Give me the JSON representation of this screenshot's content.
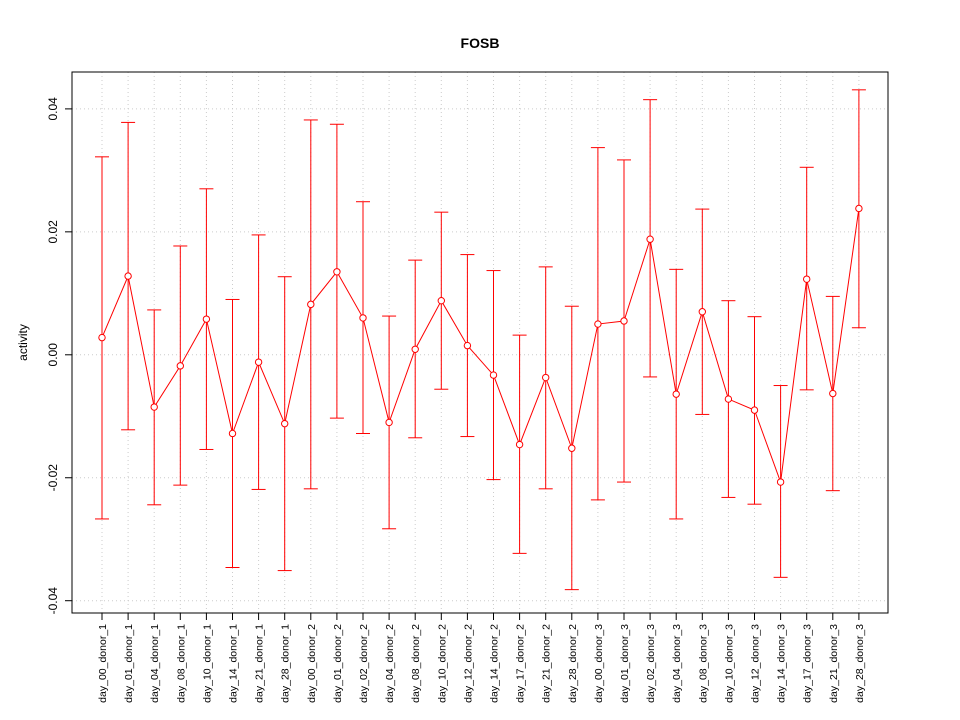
{
  "chart_data": {
    "type": "line",
    "title": "FOSB",
    "xlabel": "",
    "ylabel": "activity",
    "ylim": [
      -0.042,
      0.046
    ],
    "y_ticks": [
      -0.04,
      -0.02,
      0.0,
      0.02,
      0.04
    ],
    "y_tick_labels": [
      "-0.04",
      "-0.02",
      "0.00",
      "0.02",
      "0.04"
    ],
    "grid": true,
    "colors": {
      "series": "#ff0000",
      "grid": "#cccccc",
      "axis": "#000000"
    },
    "categories": [
      "day_00_donor_1",
      "day_01_donor_1",
      "day_04_donor_1",
      "day_08_donor_1",
      "day_10_donor_1",
      "day_14_donor_1",
      "day_21_donor_1",
      "day_28_donor_1",
      "day_00_donor_2",
      "day_01_donor_2",
      "day_02_donor_2",
      "day_04_donor_2",
      "day_08_donor_2",
      "day_10_donor_2",
      "day_12_donor_2",
      "day_14_donor_2",
      "day_17_donor_2",
      "day_21_donor_2",
      "day_28_donor_2",
      "day_00_donor_3",
      "day_01_donor_3",
      "day_02_donor_3",
      "day_04_donor_3",
      "day_08_donor_3",
      "day_10_donor_3",
      "day_12_donor_3",
      "day_14_donor_3",
      "day_17_donor_3",
      "day_21_donor_3",
      "day_28_donor_3"
    ],
    "values": [
      0.0028,
      0.0128,
      -0.0085,
      -0.0018,
      0.0058,
      -0.0128,
      -0.0012,
      -0.0112,
      0.0082,
      0.0135,
      0.006,
      -0.011,
      0.0009,
      0.0088,
      0.0015,
      -0.0033,
      -0.0146,
      -0.0037,
      -0.0152,
      0.005,
      0.0055,
      0.0188,
      -0.0064,
      0.007,
      -0.0072,
      -0.009,
      -0.0207,
      0.0123,
      -0.0063,
      0.0238
    ],
    "upper": [
      0.0322,
      0.0378,
      0.0073,
      0.0177,
      0.027,
      0.009,
      0.0195,
      0.0127,
      0.0382,
      0.0375,
      0.0249,
      0.0063,
      0.0154,
      0.0232,
      0.0163,
      0.0137,
      0.0032,
      0.0143,
      0.0079,
      0.0337,
      0.0317,
      0.0415,
      0.0139,
      0.0237,
      0.0088,
      0.0062,
      -0.005,
      0.0305,
      0.0095,
      0.0431
    ],
    "lower": [
      -0.0267,
      -0.0122,
      -0.0244,
      -0.0212,
      -0.0154,
      -0.0346,
      -0.0219,
      -0.0351,
      -0.0218,
      -0.0103,
      -0.0128,
      -0.0283,
      -0.0135,
      -0.0056,
      -0.0133,
      -0.0203,
      -0.0323,
      -0.0218,
      -0.0382,
      -0.0236,
      -0.0207,
      -0.0036,
      -0.0267,
      -0.0097,
      -0.0232,
      -0.0243,
      -0.0362,
      -0.0057,
      -0.0221,
      0.0044
    ]
  }
}
